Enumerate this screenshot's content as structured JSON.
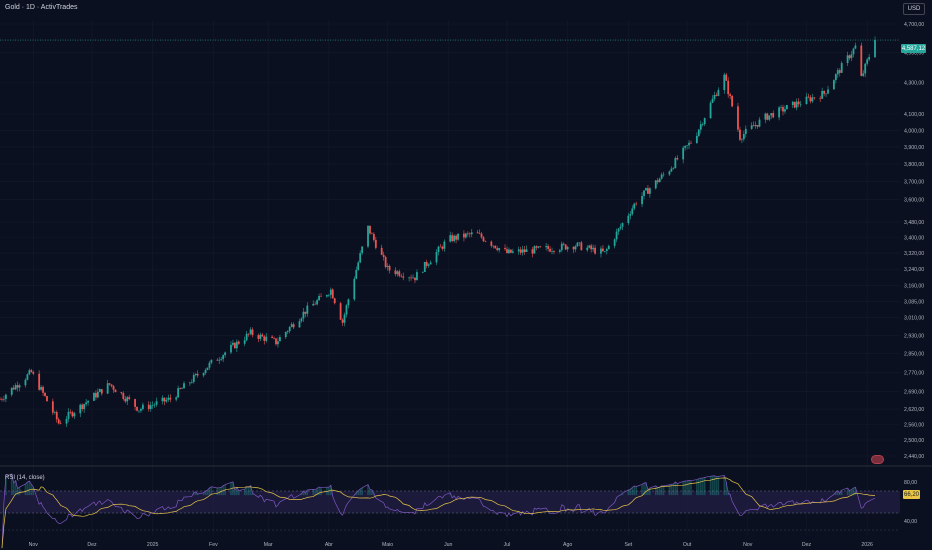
{
  "header": {
    "title": "Gold · 1D · ActivTrades",
    "currency": "USD"
  },
  "price_axis": {
    "labels": [
      "4,700,00",
      "4,500,00",
      "4,300,00",
      "4,100,00",
      "4,000,00",
      "3,900,00",
      "3,800,00",
      "3,700,00",
      "3,600,00",
      "3,480,00",
      "3,400,00",
      "3,320,00",
      "3,240,00",
      "3,160,00",
      "3,085,00",
      "3,010,00",
      "2,930,00",
      "2,850,00",
      "2,770,00",
      "2,690,00",
      "2,620,00",
      "2,560,00",
      "2,500,00",
      "2,440,00"
    ],
    "current_price": "4,587,12"
  },
  "time_axis": {
    "labels": [
      "Nov",
      "Dez",
      "2025",
      "Fev",
      "Mar",
      "Abr",
      "Maio",
      "Jun",
      "Jul",
      "Ago",
      "Set",
      "Out",
      "Nov",
      "Dez",
      "2026"
    ]
  },
  "rsi": {
    "title": "RSI (14, close)",
    "axis_labels": [
      "80,00",
      "40,00"
    ],
    "current_value": "66,20"
  },
  "colors": {
    "background": "#0b1020",
    "up": "#26a69a",
    "down": "#ef5350",
    "rsi_line": "#7e57c2",
    "rsi_ma": "#e8c547"
  },
  "chart_data": {
    "type": "candlestick",
    "symbol": "Gold",
    "interval": "1D",
    "y_scale": "log",
    "ylim": [
      2440,
      4700
    ],
    "x_range": [
      "2024-10-15",
      "2026-01-05"
    ],
    "close_anchors": [
      {
        "date": "2024-10-15",
        "close": 2660
      },
      {
        "date": "2024-10-31",
        "close": 2770
      },
      {
        "date": "2024-11-14",
        "close": 2565
      },
      {
        "date": "2024-11-25",
        "close": 2630
      },
      {
        "date": "2024-12-10",
        "close": 2720
      },
      {
        "date": "2024-12-25",
        "close": 2620
      },
      {
        "date": "2025-01-10",
        "close": 2660
      },
      {
        "date": "2025-01-31",
        "close": 2810
      },
      {
        "date": "2025-02-20",
        "close": 2940
      },
      {
        "date": "2025-03-05",
        "close": 2900
      },
      {
        "date": "2025-03-20",
        "close": 3040
      },
      {
        "date": "2025-04-02",
        "close": 3140
      },
      {
        "date": "2025-04-08",
        "close": 2990
      },
      {
        "date": "2025-04-21",
        "close": 3450
      },
      {
        "date": "2025-05-01",
        "close": 3240
      },
      {
        "date": "2025-05-15",
        "close": 3200
      },
      {
        "date": "2025-06-01",
        "close": 3390
      },
      {
        "date": "2025-06-15",
        "close": 3420
      },
      {
        "date": "2025-07-01",
        "close": 3320
      },
      {
        "date": "2025-07-20",
        "close": 3340
      },
      {
        "date": "2025-08-05",
        "close": 3360
      },
      {
        "date": "2025-08-20",
        "close": 3320
      },
      {
        "date": "2025-09-05",
        "close": 3590
      },
      {
        "date": "2025-09-22",
        "close": 3770
      },
      {
        "date": "2025-10-05",
        "close": 3960
      },
      {
        "date": "2025-10-20",
        "close": 4340
      },
      {
        "date": "2025-10-28",
        "close": 3960
      },
      {
        "date": "2025-11-10",
        "close": 4080
      },
      {
        "date": "2025-11-25",
        "close": 4160
      },
      {
        "date": "2025-12-10",
        "close": 4230
      },
      {
        "date": "2025-12-26",
        "close": 4540
      },
      {
        "date": "2025-12-29",
        "close": 4330
      },
      {
        "date": "2026-01-05",
        "close": 4587.12
      }
    ],
    "last_close": 4587.12,
    "rsi_period": 14,
    "rsi_last": 66.2,
    "rsi_levels": [
      80,
      40
    ]
  }
}
